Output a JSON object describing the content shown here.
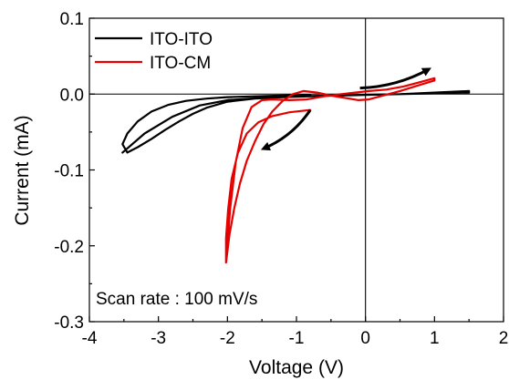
{
  "chart_data": {
    "type": "line",
    "xlabel": "Voltage (V)",
    "ylabel": "Current (mA)",
    "xlim": [
      -4,
      2
    ],
    "ylim": [
      -0.3,
      0.1
    ],
    "xticks": [
      {
        "value": -4,
        "label": "-4"
      },
      {
        "value": -3,
        "label": "-3"
      },
      {
        "value": -2,
        "label": "-2"
      },
      {
        "value": -1,
        "label": "-1"
      },
      {
        "value": 0,
        "label": "0"
      },
      {
        "value": 1,
        "label": "1"
      },
      {
        "value": 2,
        "label": "2"
      }
    ],
    "yticks": [
      {
        "value": -0.3,
        "label": "-0.3"
      },
      {
        "value": -0.2,
        "label": "-0.2"
      },
      {
        "value": -0.1,
        "label": "-0.1"
      },
      {
        "value": 0.0,
        "label": "0.0"
      },
      {
        "value": 0.1,
        "label": "0.1"
      }
    ],
    "legend_position": "top-left",
    "grid": false,
    "annotation": "Scan rate : 100 mV/s",
    "series": [
      {
        "name": "ITO-ITO",
        "color": "#000000",
        "x": [
          -0.8,
          -1.2,
          -1.6,
          -2.0,
          -2.3,
          -2.6,
          -2.85,
          -3.1,
          -3.3,
          -3.45,
          -3.52,
          -3.45,
          -3.3,
          -3.1,
          -2.9,
          -2.7,
          -2.5,
          -2.3,
          -2.0,
          -1.6,
          -1.2,
          -0.8,
          -0.4,
          0.0,
          0.5,
          1.0,
          1.5,
          1.5,
          1.0,
          0.5,
          0.0,
          -0.5,
          -1.0,
          -1.5,
          -2.0,
          -2.4,
          -2.8,
          -3.2,
          -3.52
        ],
        "y": [
          -0.001,
          -0.002,
          -0.003,
          -0.004,
          -0.006,
          -0.009,
          -0.014,
          -0.023,
          -0.036,
          -0.052,
          -0.066,
          -0.077,
          -0.07,
          -0.059,
          -0.047,
          -0.036,
          -0.026,
          -0.018,
          -0.01,
          -0.006,
          -0.004,
          -0.003,
          -0.002,
          -0.001,
          0.0,
          0.002,
          0.004,
          0.002,
          0.001,
          0.0,
          -0.001,
          -0.002,
          -0.003,
          -0.005,
          -0.008,
          -0.015,
          -0.03,
          -0.052,
          -0.077
        ]
      },
      {
        "name": "ITO-CM",
        "color": "#e60000",
        "x": [
          -0.8,
          -1.1,
          -1.35,
          -1.55,
          -1.72,
          -1.85,
          -1.94,
          -1.99,
          -2.02,
          -2.02,
          -1.97,
          -1.9,
          -1.82,
          -1.72,
          -1.6,
          -1.48,
          -1.35,
          -1.2,
          -1.05,
          -0.9,
          -0.7,
          -0.5,
          -0.3,
          -0.1,
          0.05,
          0.25,
          0.5,
          0.75,
          1.0,
          1.0,
          0.8,
          0.55,
          0.3,
          0.05,
          -0.15,
          -0.35,
          -0.6,
          -0.85,
          -1.1,
          -1.35,
          -1.5,
          -1.65,
          -1.78,
          -1.88,
          -1.96,
          -2.02
        ],
        "y": [
          -0.021,
          -0.024,
          -0.029,
          -0.037,
          -0.052,
          -0.078,
          -0.112,
          -0.152,
          -0.19,
          -0.222,
          -0.185,
          -0.15,
          -0.118,
          -0.088,
          -0.062,
          -0.04,
          -0.023,
          -0.009,
          0.0,
          0.004,
          0.002,
          -0.002,
          -0.005,
          -0.008,
          -0.007,
          -0.002,
          0.004,
          0.011,
          0.018,
          0.021,
          0.016,
          0.01,
          0.006,
          0.004,
          0.002,
          0.0,
          -0.003,
          -0.007,
          -0.008,
          -0.007,
          -0.008,
          -0.017,
          -0.045,
          -0.09,
          -0.15,
          -0.222
        ]
      }
    ],
    "arrows": [
      {
        "x1": -0.08,
        "y1": 0.008,
        "x2": 0.92,
        "y2": 0.033,
        "color": "#000000"
      },
      {
        "x1": -0.8,
        "y1": -0.021,
        "x2": -1.48,
        "y2": -0.072,
        "color": "#000000"
      }
    ]
  }
}
